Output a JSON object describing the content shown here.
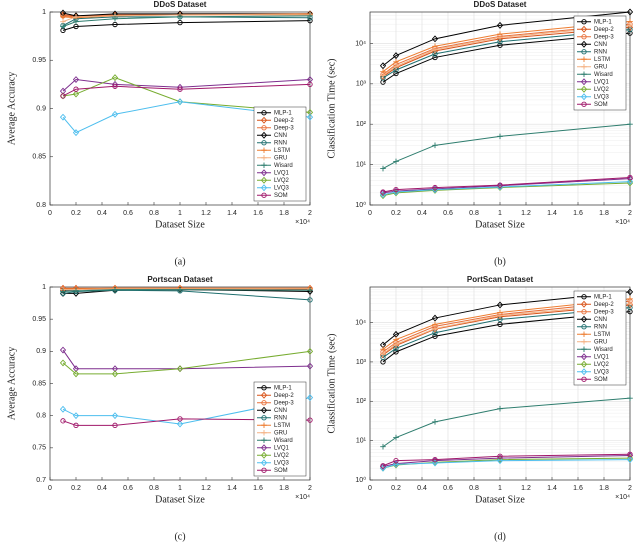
{
  "chart_data": [
    {
      "type": "line",
      "title": "DDoS Dataset",
      "xlabel": "Dataset Size",
      "ylabel": "Average Accuracy",
      "caption": "(a)",
      "x_multiplier": "×10⁴",
      "legend": "lower right",
      "grid": false,
      "log_y": false,
      "x": [
        1000,
        2000,
        5000,
        10000,
        20000
      ],
      "xlim": [
        0,
        20000
      ],
      "xticks": [
        0,
        {
          "value": 2000,
          "label": "0.2"
        },
        {
          "value": 4000,
          "label": "0.4"
        },
        {
          "value": 6000,
          "label": "0.6"
        },
        {
          "value": 8000,
          "label": "0.8"
        },
        {
          "value": 10000,
          "label": "1"
        },
        {
          "value": 12000,
          "label": "1.2"
        },
        {
          "value": 14000,
          "label": "1.4"
        },
        {
          "value": 16000,
          "label": "1.6"
        },
        {
          "value": 18000,
          "label": "1.8"
        },
        {
          "value": 20000,
          "label": "2"
        }
      ],
      "ylim": [
        0.8,
        1
      ],
      "yticks": [
        0.8,
        0.85,
        0.9,
        0.95,
        1
      ],
      "series": [
        {
          "name": "MLP-1",
          "color": "#000000",
          "marker": "circle",
          "values": [
            0.981,
            0.985,
            0.987,
            0.989,
            0.991
          ]
        },
        {
          "name": "Deep-2",
          "color": "#d95319",
          "marker": "diamond",
          "values": [
            0.997,
            0.996,
            0.997,
            0.998,
            0.998
          ]
        },
        {
          "name": "Deep-3",
          "color": "#e8703a",
          "marker": "circle",
          "values": [
            0.996,
            0.995,
            0.997,
            0.997,
            0.998
          ]
        },
        {
          "name": "CNN",
          "color": "#000000",
          "marker": "diamond",
          "values": [
            0.999,
            0.996,
            0.998,
            0.998,
            0.998
          ]
        },
        {
          "name": "RNN",
          "color": "#1f6f6f",
          "marker": "circle",
          "values": [
            0.986,
            0.993,
            0.995,
            0.995,
            0.994
          ]
        },
        {
          "name": "LSTM",
          "color": "#ed7d31",
          "marker": "plus",
          "values": [
            0.995,
            0.994,
            0.996,
            0.997,
            0.998
          ]
        },
        {
          "name": "GRU",
          "color": "#f4b183",
          "marker": "plus",
          "values": [
            0.99,
            0.995,
            0.996,
            0.997,
            0.997
          ]
        },
        {
          "name": "Wisard",
          "color": "#2e7d6e",
          "marker": "plus",
          "values": [
            0.985,
            0.99,
            0.993,
            0.995,
            0.996
          ]
        },
        {
          "name": "LVQ1",
          "color": "#7e2f8e",
          "marker": "diamond",
          "values": [
            0.918,
            0.93,
            0.925,
            0.922,
            0.93
          ]
        },
        {
          "name": "LVQ2",
          "color": "#77ac30",
          "marker": "diamond",
          "values": [
            0.913,
            0.915,
            0.932,
            0.907,
            0.896
          ]
        },
        {
          "name": "LVQ3",
          "color": "#4dbeee",
          "marker": "diamond",
          "values": [
            0.891,
            0.875,
            0.894,
            0.907,
            0.891
          ]
        },
        {
          "name": "SOM",
          "color": "#a0186a",
          "marker": "circle",
          "values": [
            0.913,
            0.92,
            0.923,
            0.92,
            0.925
          ]
        }
      ]
    },
    {
      "type": "line",
      "title": "DDoS Dataset",
      "xlabel": "Dataset Size",
      "ylabel": "Classification Time (sec)",
      "caption": "(b)",
      "x_multiplier": "×10⁴",
      "legend": "upper right",
      "grid": true,
      "log_y": true,
      "x": [
        1000,
        2000,
        5000,
        10000,
        20000
      ],
      "xlim": [
        0,
        20000
      ],
      "xticks": [
        0,
        {
          "value": 2000,
          "label": "0.2"
        },
        {
          "value": 4000,
          "label": "0.4"
        },
        {
          "value": 6000,
          "label": "0.6"
        },
        {
          "value": 8000,
          "label": "0.8"
        },
        {
          "value": 10000,
          "label": "1"
        },
        {
          "value": 12000,
          "label": "1.2"
        },
        {
          "value": 14000,
          "label": "1.4"
        },
        {
          "value": 16000,
          "label": "1.6"
        },
        {
          "value": 18000,
          "label": "1.8"
        },
        {
          "value": 20000,
          "label": "2"
        }
      ],
      "ylim": [
        1,
        60000
      ],
      "yticks": [
        {
          "value": 1,
          "label": "10⁰"
        },
        {
          "value": 10,
          "label": "10¹"
        },
        {
          "value": 100,
          "label": "10²"
        },
        {
          "value": 1000,
          "label": "10³"
        },
        {
          "value": 10000,
          "label": "10⁴"
        }
      ],
      "series": [
        {
          "name": "MLP-1",
          "color": "#000000",
          "marker": "circle",
          "values": [
            1100,
            1800,
            4500,
            9000,
            18000
          ]
        },
        {
          "name": "Deep-2",
          "color": "#d95319",
          "marker": "diamond",
          "values": [
            1500,
            2500,
            6500,
            13000,
            25000
          ]
        },
        {
          "name": "Deep-3",
          "color": "#e8703a",
          "marker": "circle",
          "values": [
            1700,
            3000,
            7500,
            15000,
            30000
          ]
        },
        {
          "name": "CNN",
          "color": "#000000",
          "marker": "diamond",
          "values": [
            2800,
            5000,
            13000,
            28000,
            60000
          ]
        },
        {
          "name": "RNN",
          "color": "#1f6f6f",
          "marker": "circle",
          "values": [
            1400,
            2200,
            5500,
            11000,
            22000
          ]
        },
        {
          "name": "LSTM",
          "color": "#ed7d31",
          "marker": "plus",
          "values": [
            2000,
            3500,
            8500,
            17000,
            35000
          ]
        },
        {
          "name": "GRU",
          "color": "#f4b183",
          "marker": "plus",
          "values": [
            1600,
            2700,
            7000,
            14000,
            28000
          ]
        },
        {
          "name": "Wisard",
          "color": "#2e7d6e",
          "marker": "plus",
          "values": [
            8,
            12,
            30,
            50,
            100
          ]
        },
        {
          "name": "LVQ1",
          "color": "#7e2f8e",
          "marker": "diamond",
          "values": [
            2,
            2.2,
            2.5,
            3,
            4.5
          ]
        },
        {
          "name": "LVQ2",
          "color": "#77ac30",
          "marker": "diamond",
          "values": [
            1.7,
            2,
            2.3,
            2.7,
            3.5
          ]
        },
        {
          "name": "LVQ3",
          "color": "#4dbeee",
          "marker": "diamond",
          "values": [
            1.8,
            2.1,
            2.4,
            2.8,
            3.8
          ]
        },
        {
          "name": "SOM",
          "color": "#a0186a",
          "marker": "circle",
          "values": [
            2.1,
            2.4,
            2.7,
            3.1,
            4.8
          ]
        }
      ]
    },
    {
      "type": "line",
      "title": "Portscan Dataset",
      "xlabel": "Dataset Size",
      "ylabel": "Average Accuracy",
      "caption": "(c)",
      "x_multiplier": "×10⁴",
      "legend": "lower right",
      "grid": false,
      "log_y": false,
      "x": [
        1000,
        2000,
        5000,
        10000,
        20000
      ],
      "xlim": [
        0,
        20000
      ],
      "xticks": [
        0,
        {
          "value": 2000,
          "label": "0.2"
        },
        {
          "value": 4000,
          "label": "0.4"
        },
        {
          "value": 6000,
          "label": "0.6"
        },
        {
          "value": 8000,
          "label": "0.8"
        },
        {
          "value": 10000,
          "label": "1"
        },
        {
          "value": 12000,
          "label": "1.2"
        },
        {
          "value": 14000,
          "label": "1.4"
        },
        {
          "value": 16000,
          "label": "1.6"
        },
        {
          "value": 18000,
          "label": "1.8"
        },
        {
          "value": 20000,
          "label": "2"
        }
      ],
      "ylim": [
        0.7,
        1
      ],
      "yticks": [
        0.7,
        0.75,
        0.8,
        0.85,
        0.9,
        0.95,
        1
      ],
      "series": [
        {
          "name": "MLP-1",
          "color": "#000000",
          "marker": "circle",
          "values": [
            0.995,
            0.996,
            0.997,
            0.997,
            0.996
          ]
        },
        {
          "name": "Deep-2",
          "color": "#d95319",
          "marker": "diamond",
          "values": [
            0.998,
            0.998,
            0.998,
            0.998,
            0.998
          ]
        },
        {
          "name": "Deep-3",
          "color": "#e8703a",
          "marker": "circle",
          "values": [
            0.997,
            0.997,
            0.998,
            0.998,
            0.997
          ]
        },
        {
          "name": "CNN",
          "color": "#000000",
          "marker": "diamond",
          "values": [
            0.99,
            0.99,
            0.995,
            0.996,
            0.993
          ]
        },
        {
          "name": "RNN",
          "color": "#1f6f6f",
          "marker": "circle",
          "values": [
            0.99,
            0.993,
            0.995,
            0.994,
            0.98
          ]
        },
        {
          "name": "LSTM",
          "color": "#ed7d31",
          "marker": "plus",
          "values": [
            0.997,
            0.997,
            0.998,
            0.998,
            0.998
          ]
        },
        {
          "name": "GRU",
          "color": "#f4b183",
          "marker": "plus",
          "values": [
            0.996,
            0.996,
            0.997,
            0.997,
            0.997
          ]
        },
        {
          "name": "Wisard",
          "color": "#2e7d6e",
          "marker": "plus",
          "values": [
            0.993,
            0.994,
            0.996,
            0.996,
            0.995
          ]
        },
        {
          "name": "LVQ1",
          "color": "#7e2f8e",
          "marker": "diamond",
          "values": [
            0.902,
            0.873,
            0.873,
            0.873,
            0.877
          ]
        },
        {
          "name": "LVQ2",
          "color": "#77ac30",
          "marker": "diamond",
          "values": [
            0.882,
            0.865,
            0.865,
            0.873,
            0.9
          ]
        },
        {
          "name": "LVQ3",
          "color": "#4dbeee",
          "marker": "diamond",
          "values": [
            0.81,
            0.8,
            0.8,
            0.787,
            0.828
          ]
        },
        {
          "name": "SOM",
          "color": "#a0186a",
          "marker": "circle",
          "values": [
            0.792,
            0.785,
            0.785,
            0.795,
            0.793
          ]
        }
      ]
    },
    {
      "type": "line",
      "title": "PortScan Dataset",
      "xlabel": "Dataset Size",
      "ylabel": "Classification Time (sec)",
      "caption": "(d)",
      "x_multiplier": "×10⁴",
      "legend": "upper right",
      "grid": true,
      "log_y": true,
      "x": [
        1000,
        2000,
        5000,
        10000,
        20000
      ],
      "xlim": [
        0,
        20000
      ],
      "xticks": [
        0,
        {
          "value": 2000,
          "label": "0.2"
        },
        {
          "value": 4000,
          "label": "0.4"
        },
        {
          "value": 6000,
          "label": "0.6"
        },
        {
          "value": 8000,
          "label": "0.8"
        },
        {
          "value": 10000,
          "label": "1"
        },
        {
          "value": 12000,
          "label": "1.2"
        },
        {
          "value": 14000,
          "label": "1.4"
        },
        {
          "value": 16000,
          "label": "1.6"
        },
        {
          "value": 18000,
          "label": "1.8"
        },
        {
          "value": 20000,
          "label": "2"
        }
      ],
      "ylim": [
        1,
        80000
      ],
      "yticks": [
        {
          "value": 1,
          "label": "10⁰"
        },
        {
          "value": 10,
          "label": "10¹"
        },
        {
          "value": 100,
          "label": "10²"
        },
        {
          "value": 1000,
          "label": "10³"
        },
        {
          "value": 10000,
          "label": "10⁴"
        }
      ],
      "series": [
        {
          "name": "MLP-1",
          "color": "#000000",
          "marker": "circle",
          "values": [
            1000,
            1800,
            4500,
            9000,
            19000
          ]
        },
        {
          "name": "Deep-2",
          "color": "#d95319",
          "marker": "diamond",
          "values": [
            1500,
            2600,
            6800,
            14000,
            28000
          ]
        },
        {
          "name": "Deep-3",
          "color": "#e8703a",
          "marker": "circle",
          "values": [
            1800,
            3100,
            8000,
            16000,
            35000
          ]
        },
        {
          "name": "CNN",
          "color": "#000000",
          "marker": "diamond",
          "values": [
            2700,
            5000,
            13000,
            28000,
            60000
          ]
        },
        {
          "name": "RNN",
          "color": "#1f6f6f",
          "marker": "circle",
          "values": [
            1300,
            2200,
            5500,
            12000,
            24000
          ]
        },
        {
          "name": "LSTM",
          "color": "#ed7d31",
          "marker": "plus",
          "values": [
            2100,
            3700,
            9000,
            18000,
            40000
          ]
        },
        {
          "name": "GRU",
          "color": "#f4b183",
          "marker": "plus",
          "values": [
            1600,
            2800,
            7000,
            15000,
            30000
          ]
        },
        {
          "name": "Wisard",
          "color": "#2e7d6e",
          "marker": "plus",
          "values": [
            7,
            12,
            30,
            65,
            120
          ]
        },
        {
          "name": "LVQ1",
          "color": "#7e2f8e",
          "marker": "diamond",
          "values": [
            2.2,
            2.6,
            3.1,
            3.6,
            4.2
          ]
        },
        {
          "name": "LVQ2",
          "color": "#77ac30",
          "marker": "diamond",
          "values": [
            2,
            2.4,
            2.8,
            3.3,
            3.6
          ]
        },
        {
          "name": "LVQ3",
          "color": "#4dbeee",
          "marker": "diamond",
          "values": [
            2,
            2.5,
            2.7,
            3.1,
            3.3
          ]
        },
        {
          "name": "SOM",
          "color": "#a0186a",
          "marker": "circle",
          "values": [
            2.3,
            3.1,
            3.3,
            4,
            4.5
          ]
        }
      ]
    }
  ]
}
